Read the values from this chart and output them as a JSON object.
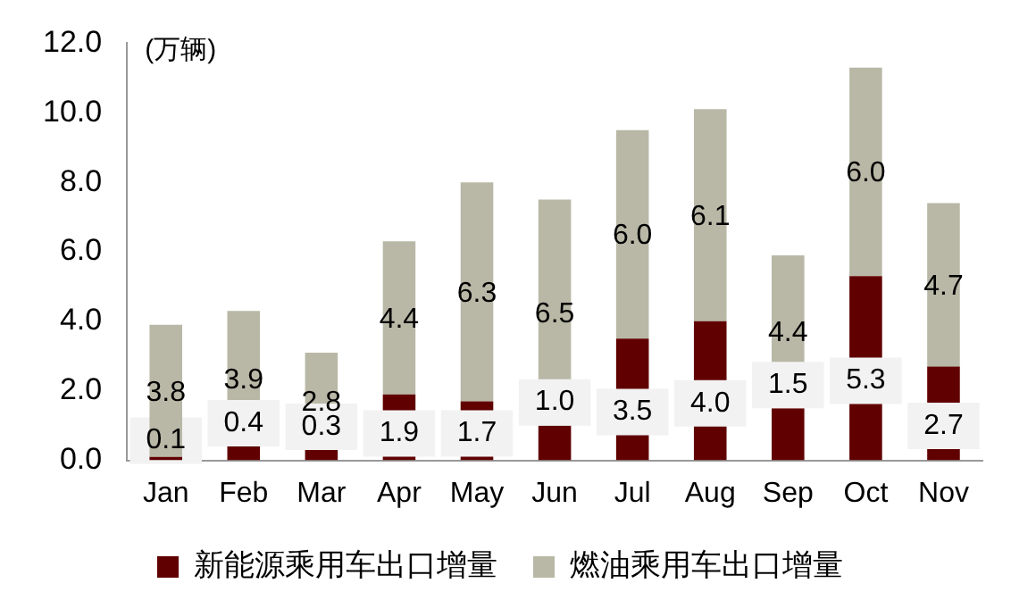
{
  "chart_data": {
    "type": "bar",
    "stacked": true,
    "ylabel": "(万辆)",
    "categories": [
      "Jan",
      "Feb",
      "Mar",
      "Apr",
      "May",
      "Jun",
      "Jul",
      "Aug",
      "Sep",
      "Oct",
      "Nov"
    ],
    "series": [
      {
        "name": "新能源乘用车出口增量",
        "color": "#600000",
        "values": [
          0.1,
          0.4,
          0.3,
          1.9,
          1.7,
          1.0,
          3.5,
          4.0,
          1.5,
          5.3,
          2.7
        ],
        "value_labels": [
          "0.1",
          "0.4",
          "0.3",
          "1.9",
          "1.7",
          "1.0",
          "3.5",
          "4.0",
          "1.5",
          "5.3",
          "2.7"
        ]
      },
      {
        "name": "燃油乘用车出口增量",
        "color": "#b9b8a7",
        "values": [
          3.8,
          3.9,
          2.8,
          4.4,
          6.3,
          6.5,
          6.0,
          6.1,
          4.4,
          6.0,
          4.7
        ],
        "value_labels": [
          "3.8",
          "3.9",
          "2.8",
          "4.4",
          "6.3",
          "6.5",
          "6.0",
          "6.1",
          "4.4",
          "6.0",
          "4.7"
        ]
      }
    ],
    "ylim": [
      0,
      12
    ],
    "yticks": [
      {
        "value": 0,
        "label": "0.0"
      },
      {
        "value": 2,
        "label": "2.0"
      },
      {
        "value": 4,
        "label": "4.0"
      },
      {
        "value": 6,
        "label": "6.0"
      },
      {
        "value": 8,
        "label": "8.0"
      },
      {
        "value": 10,
        "label": "10.0"
      },
      {
        "value": 12,
        "label": "12.0"
      }
    ],
    "grid": false,
    "legend": "bottom"
  }
}
